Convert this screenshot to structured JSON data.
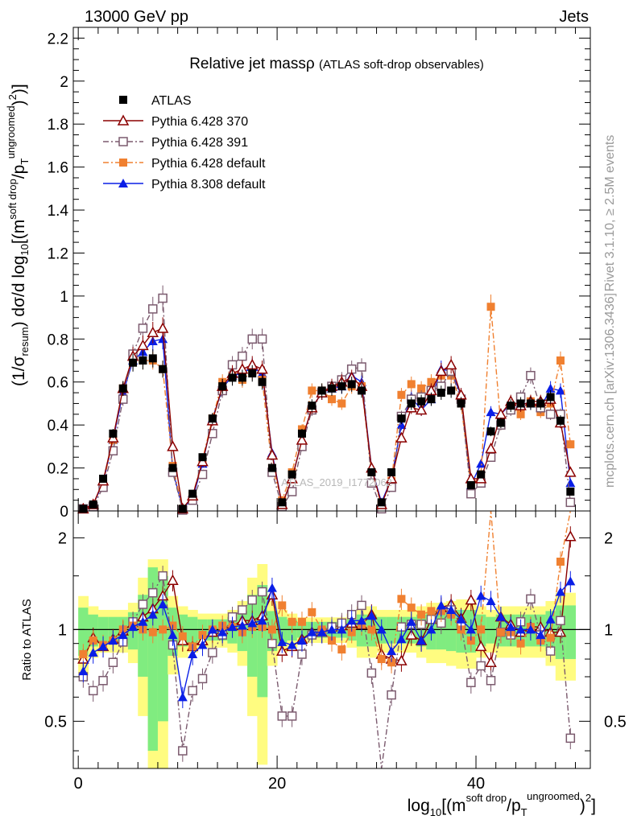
{
  "header": {
    "energy": "13000 GeV pp",
    "process": "Jets"
  },
  "side_labels": {
    "rivet": "Rivet 3.1.10, ≥ 2.5M events",
    "mcplots": "mcplots.cern.ch [arXiv:1306.3436]"
  },
  "watermark": "ATLAS_2019_I1772062",
  "chart_data": {
    "type": "line",
    "title": "Relative jet massρ",
    "subtitle": "(ATLAS soft-drop observables)",
    "xlabel": "log10[(m^soft drop/pT^ungroomed)^2]",
    "ylabel": "(1/σresum) dσ/d log10[(m^soft drop/pT^ungroomed)^2]",
    "ratio_ylabel": "Ratio to ATLAS",
    "xlim": [
      -0.5,
      51.5
    ],
    "ylim": [
      0,
      2.25
    ],
    "ratio_ylim": [
      0.35,
      2.45
    ],
    "ratio_scale": "log",
    "xticks": [
      "0",
      "20",
      "40"
    ],
    "yticks": [
      "0",
      "0.2",
      "0.4",
      "0.6",
      "0.8",
      "1",
      "1.2",
      "1.4",
      "1.6",
      "1.8",
      "2",
      "2.2"
    ],
    "ratio_yticks": [
      "0.5",
      "1",
      "2"
    ],
    "legend_position": "top-left",
    "x": [
      0.5,
      1.5,
      2.5,
      3.5,
      4.5,
      5.5,
      6.5,
      7.5,
      8.5,
      9.5,
      10.5,
      11.5,
      12.5,
      13.5,
      14.5,
      15.5,
      16.5,
      17.5,
      18.5,
      19.5,
      20.5,
      21.5,
      22.5,
      23.5,
      24.5,
      25.5,
      26.5,
      27.5,
      28.5,
      29.5,
      30.5,
      31.5,
      32.5,
      33.5,
      34.5,
      35.5,
      36.5,
      37.5,
      38.5,
      39.5,
      40.5,
      41.5,
      42.5,
      43.5,
      44.5,
      45.5,
      46.5,
      47.5,
      48.5,
      49.5
    ],
    "series": [
      {
        "name": "ATLAS",
        "color": "#000000",
        "marker": "filled-square",
        "line": "none",
        "values": [
          0.01,
          0.03,
          0.15,
          0.36,
          0.57,
          0.69,
          0.7,
          0.71,
          0.66,
          0.2,
          0.01,
          0.08,
          0.25,
          0.43,
          0.58,
          0.62,
          0.62,
          0.64,
          0.6,
          0.2,
          0.04,
          0.17,
          0.36,
          0.49,
          0.56,
          0.57,
          0.58,
          0.59,
          0.56,
          0.18,
          0.04,
          0.18,
          0.43,
          0.5,
          0.51,
          0.52,
          0.55,
          0.56,
          0.5,
          0.12,
          0.17,
          0.37,
          0.41,
          0.49,
          0.5,
          0.5,
          0.5,
          0.53,
          0.42,
          0.09
        ]
      },
      {
        "name": "Pythia 6.428 370",
        "color": "#8b0000",
        "marker": "open-triangle",
        "line": "solid",
        "values": [
          0.01,
          0.03,
          0.14,
          0.34,
          0.57,
          0.72,
          0.77,
          0.83,
          0.85,
          0.3,
          0.01,
          0.07,
          0.23,
          0.42,
          0.58,
          0.64,
          0.66,
          0.68,
          0.66,
          0.26,
          0.03,
          0.15,
          0.33,
          0.48,
          0.55,
          0.58,
          0.6,
          0.62,
          0.58,
          0.2,
          0.03,
          0.15,
          0.34,
          0.48,
          0.47,
          0.56,
          0.65,
          0.68,
          0.54,
          0.15,
          0.15,
          0.29,
          0.45,
          0.51,
          0.49,
          0.51,
          0.51,
          0.52,
          0.41,
          0.18
        ]
      },
      {
        "name": "Pythia 6.428 391",
        "color": "#7b5a6e",
        "marker": "open-square",
        "line": "dashdot",
        "values": [
          0.01,
          0.02,
          0.11,
          0.28,
          0.52,
          0.73,
          0.85,
          0.94,
          0.99,
          0.18,
          0.004,
          0.05,
          0.17,
          0.36,
          0.56,
          0.68,
          0.72,
          0.8,
          0.8,
          0.18,
          0.02,
          0.09,
          0.3,
          0.47,
          0.55,
          0.58,
          0.61,
          0.66,
          0.67,
          0.13,
          0.01,
          0.11,
          0.44,
          0.52,
          0.53,
          0.56,
          0.58,
          0.65,
          0.52,
          0.08,
          0.13,
          0.25,
          0.4,
          0.47,
          0.53,
          0.63,
          0.48,
          0.45,
          0.45,
          0.04
        ]
      },
      {
        "name": "Pythia 6.428 default",
        "color": "#f08030",
        "marker": "filled-square",
        "line": "dashdot",
        "values": [
          0.01,
          0.03,
          0.13,
          0.33,
          0.57,
          0.71,
          0.7,
          0.7,
          0.66,
          0.21,
          0.01,
          0.07,
          0.24,
          0.43,
          0.6,
          0.63,
          0.61,
          0.65,
          0.61,
          0.2,
          0.05,
          0.18,
          0.38,
          0.56,
          0.56,
          0.52,
          0.5,
          0.58,
          0.58,
          0.18,
          0.03,
          0.14,
          0.54,
          0.59,
          0.57,
          0.6,
          0.63,
          0.63,
          0.5,
          0.11,
          0.17,
          0.95,
          0.4,
          0.48,
          0.45,
          0.51,
          0.46,
          0.5,
          0.7,
          0.31
        ]
      },
      {
        "name": "Pythia 8.308 default",
        "color": "#0a1ee6",
        "marker": "filled-triangle",
        "line": "solid",
        "values": [
          0.01,
          0.03,
          0.13,
          0.33,
          0.55,
          0.7,
          0.74,
          0.79,
          0.8,
          0.19,
          0.01,
          0.06,
          0.22,
          0.43,
          0.57,
          0.63,
          0.64,
          0.67,
          0.64,
          0.27,
          0.03,
          0.15,
          0.33,
          0.48,
          0.55,
          0.57,
          0.58,
          0.63,
          0.6,
          0.2,
          0.04,
          0.15,
          0.4,
          0.53,
          0.47,
          0.52,
          0.66,
          0.65,
          0.54,
          0.12,
          0.22,
          0.46,
          0.45,
          0.5,
          0.5,
          0.5,
          0.48,
          0.57,
          0.56,
          0.13
        ]
      }
    ],
    "ratio_series": [
      {
        "name": "Pythia 6.428 370",
        "values": [
          0.8,
          0.94,
          0.88,
          0.93,
          0.99,
          1.05,
          1.1,
          1.17,
          1.29,
          1.45,
          0.92,
          0.88,
          0.92,
          0.98,
          1.0,
          1.03,
          1.07,
          1.07,
          1.11,
          1.3,
          0.85,
          0.88,
          0.93,
          0.98,
          0.98,
          1.02,
          1.03,
          1.05,
          1.04,
          1.12,
          0.83,
          0.8,
          0.79,
          0.96,
          0.92,
          1.08,
          1.18,
          1.21,
          1.09,
          1.25,
          0.88,
          0.78,
          1.1,
          1.04,
          0.98,
          1.02,
          1.02,
          0.98,
          0.98,
          2.02
        ]
      },
      {
        "name": "Pythia 6.428 391",
        "values": [
          0.7,
          0.63,
          0.68,
          0.78,
          0.91,
          1.06,
          1.21,
          1.32,
          1.5,
          0.89,
          0.4,
          0.63,
          0.69,
          0.84,
          0.96,
          1.1,
          1.16,
          1.25,
          1.33,
          0.9,
          0.52,
          0.52,
          0.83,
          0.96,
          0.98,
          1.02,
          1.05,
          1.12,
          1.2,
          0.72,
          0.25,
          0.61,
          1.02,
          1.04,
          1.04,
          1.08,
          1.05,
          1.16,
          1.04,
          0.67,
          0.76,
          0.68,
          0.98,
          0.96,
          1.06,
          1.26,
          0.96,
          0.85,
          1.07,
          0.44
        ]
      },
      {
        "name": "Pythia 6.428 default",
        "values": [
          0.83,
          0.92,
          0.89,
          0.92,
          1.0,
          1.03,
          1.0,
          0.98,
          1.0,
          1.03,
          0.95,
          0.88,
          0.96,
          1.0,
          1.03,
          1.02,
          0.98,
          1.02,
          1.02,
          1.0,
          1.2,
          1.06,
          1.06,
          1.14,
          1.0,
          0.92,
          0.86,
          0.98,
          1.04,
          1.0,
          0.8,
          0.78,
          1.26,
          1.18,
          1.12,
          1.15,
          1.15,
          1.12,
          1.0,
          0.92,
          1.0,
          2.56,
          0.98,
          0.98,
          0.9,
          1.02,
          0.92,
          0.94,
          1.67,
          3.44
        ]
      },
      {
        "name": "Pythia 8.308 default",
        "values": [
          0.73,
          0.84,
          0.88,
          0.92,
          0.96,
          1.02,
          1.06,
          1.12,
          1.21,
          0.96,
          0.6,
          0.83,
          0.89,
          1.0,
          0.98,
          1.02,
          1.03,
          1.05,
          1.07,
          1.37,
          0.91,
          0.89,
          0.92,
          0.98,
          0.98,
          1.0,
          1.0,
          1.07,
          1.07,
          1.11,
          1.0,
          0.85,
          0.93,
          1.06,
          0.92,
          1.0,
          1.2,
          1.16,
          1.08,
          1.0,
          1.29,
          1.24,
          1.1,
          1.02,
          1.0,
          1.0,
          0.96,
          1.08,
          1.33,
          1.44
        ]
      }
    ],
    "band_levels": [
      0.18,
      0.12,
      0.1,
      0.1,
      0.1,
      0.14,
      0.3,
      0.6,
      0.5,
      0.18,
      0.12,
      0.1,
      0.08,
      0.08,
      0.08,
      0.1,
      0.15,
      0.3,
      0.4,
      0.15,
      0.1,
      0.08,
      0.06,
      0.06,
      0.06,
      0.06,
      0.06,
      0.08,
      0.12,
      0.12,
      0.1,
      0.1,
      0.1,
      0.1,
      0.12,
      0.14,
      0.14,
      0.15,
      0.16,
      0.16,
      0.12,
      0.1,
      0.12,
      0.12,
      0.12,
      0.12,
      0.12,
      0.15,
      0.2,
      0.2
    ],
    "band_colors": {
      "stat": "#80ec80",
      "total": "#fffc80"
    },
    "reference_line": 1
  }
}
